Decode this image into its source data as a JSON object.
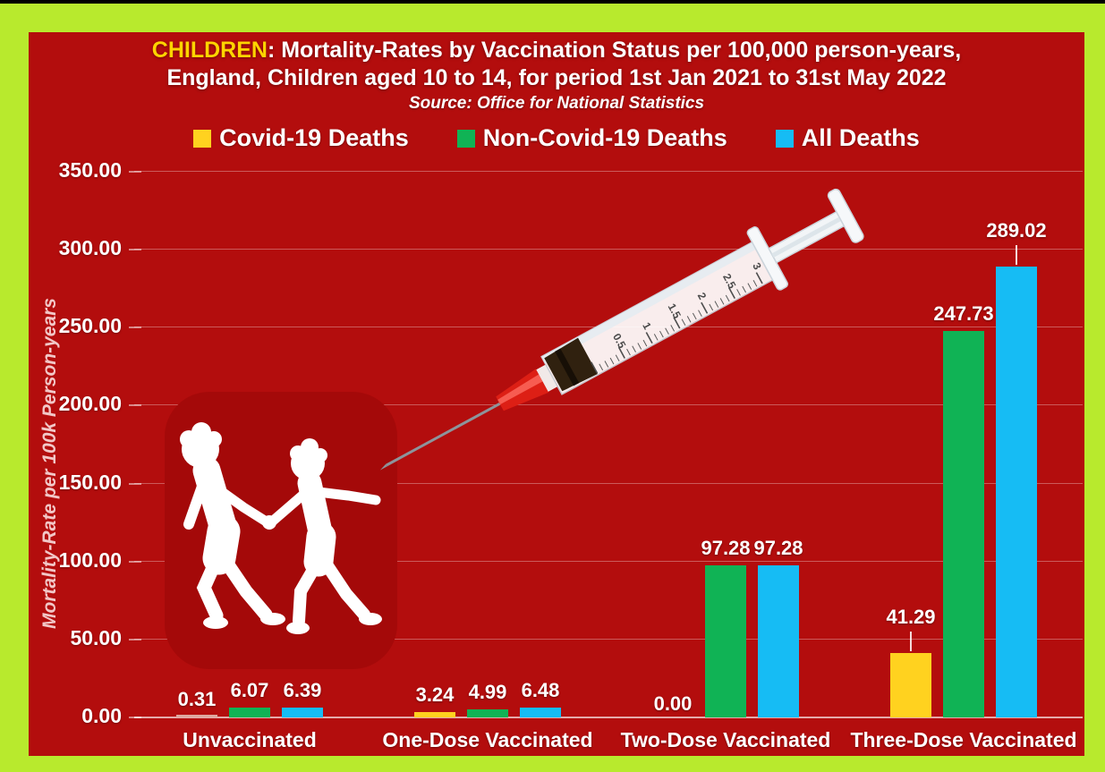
{
  "frame": {
    "border_color": "#b8ea2d",
    "top_strip_color": "#000000",
    "background_color": "#b30d0d"
  },
  "title": {
    "highlight": "CHILDREN",
    "line1_rest": ": Mortality-Rates by Vaccination Status per 100,000 person-years,",
    "line2": "England, Children aged 10 to 14, for period 1st Jan 2021 to 31st May 2022",
    "source": "Source: Office for National Statistics"
  },
  "legend": [
    {
      "label": "Covid-19 Deaths",
      "color": "#ffd21f"
    },
    {
      "label": "Non-Covid-19 Deaths",
      "color": "#10b355"
    },
    {
      "label": "All Deaths",
      "color": "#16bcf4"
    }
  ],
  "chart_data": {
    "type": "bar",
    "title": "CHILDREN: Mortality-Rates by Vaccination Status per 100,000 person-years, England, Children aged 10 to 14, for period 1st Jan 2021 to 31st May 2022",
    "source": "Source: Office for National Statistics",
    "xlabel": "",
    "ylabel": "Mortality-Rate per 100k Person-years",
    "ylim": [
      0,
      350
    ],
    "ytick_step": 50,
    "ytick_labels": [
      "0.00",
      "50.00",
      "100.00",
      "150.00",
      "200.00",
      "250.00",
      "300.00",
      "350.00"
    ],
    "grid": true,
    "legend_position": "top",
    "categories": [
      "Unvaccinated",
      "One-Dose Vaccinated",
      "Two-Dose Vaccinated",
      "Three-Dose Vaccinated"
    ],
    "series": [
      {
        "name": "Covid-19 Deaths",
        "color": "#ffd21f",
        "values": [
          0.31,
          3.24,
          0.0,
          41.29
        ],
        "labels": [
          "0.31",
          "3.24",
          "0.00",
          "41.29"
        ]
      },
      {
        "name": "Non-Covid-19 Deaths",
        "color": "#10b355",
        "values": [
          6.07,
          4.99,
          97.28,
          247.73
        ],
        "labels": [
          "6.07",
          "4.99",
          "97.28",
          "247.73"
        ]
      },
      {
        "name": "All Deaths",
        "color": "#16bcf4",
        "values": [
          6.39,
          6.48,
          97.28,
          289.02
        ],
        "labels": [
          "6.39",
          "6.48",
          "97.28",
          "289.02"
        ]
      }
    ],
    "style": {
      "bar_color_overrides": [
        {
          "series": 0,
          "category": 0,
          "color": "#dfa89f"
        }
      ],
      "leader_lines": [
        {
          "series": 0,
          "category": 3
        },
        {
          "series": 2,
          "category": 3
        }
      ],
      "gridline_color": "rgba(255,255,255,0.32)",
      "axis_line_color": "rgba(255,255,255,0.65)"
    }
  },
  "decorations": {
    "children_silhouette": "two-children-running-holding-hands",
    "syringe": "syringe-with-needle-pointing-at-children",
    "syringe_scale_numbers": [
      "0.5",
      "1",
      "1.5",
      "2",
      "2.5",
      "3"
    ]
  }
}
